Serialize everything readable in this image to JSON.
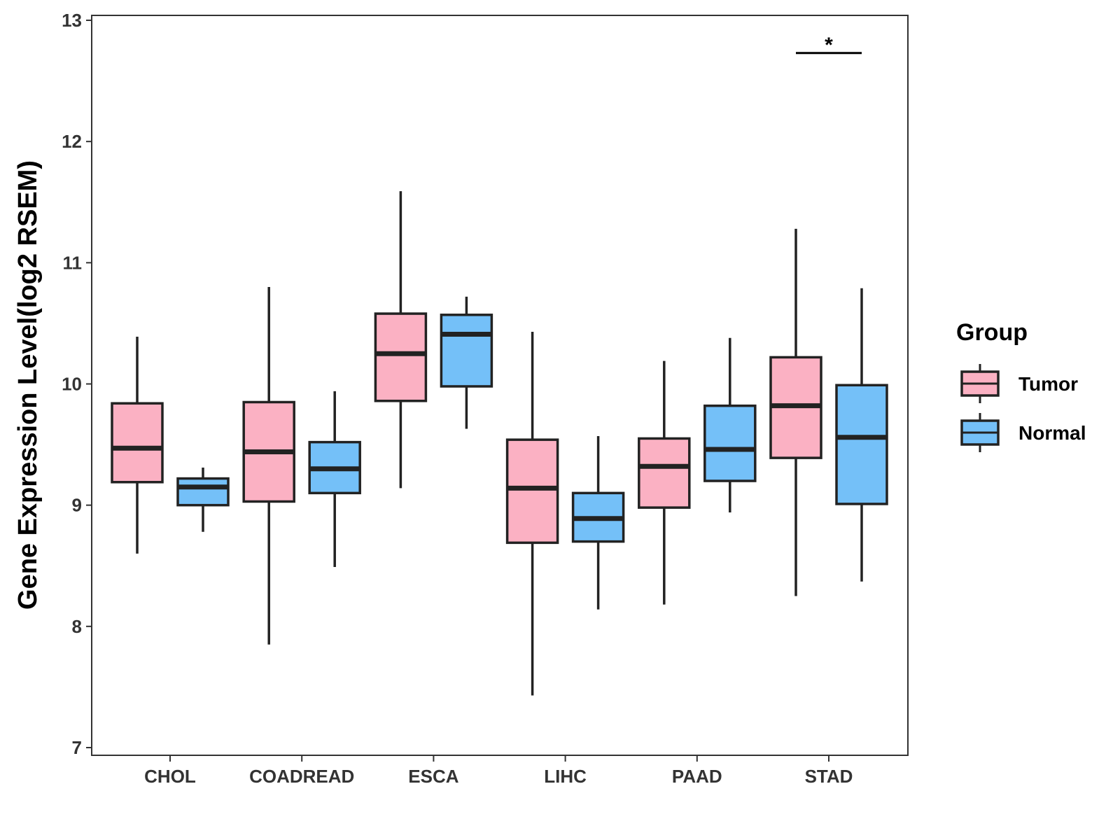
{
  "chart_data": {
    "type": "boxplot",
    "title": "",
    "xlabel": "",
    "ylabel": "Gene Expression Level(log2 RSEM)",
    "ylim": [
      7,
      13
    ],
    "yticks": [
      7,
      8,
      9,
      10,
      11,
      12,
      13
    ],
    "categories": [
      "CHOL",
      "COADREAD",
      "ESCA",
      "LIHC",
      "PAAD",
      "STAD"
    ],
    "legend": {
      "title": "Group",
      "position": "right",
      "entries": [
        {
          "name": "Tumor",
          "color": "#FBB1C3"
        },
        {
          "name": "Normal",
          "color": "#74C0F8"
        }
      ]
    },
    "series": [
      {
        "name": "Tumor",
        "color": "#FBB1C3",
        "boxes": [
          {
            "whisker_low": 8.6,
            "q1": 9.19,
            "median": 9.47,
            "q3": 9.84,
            "whisker_high": 10.39
          },
          {
            "whisker_low": 7.85,
            "q1": 9.03,
            "median": 9.44,
            "q3": 9.85,
            "whisker_high": 10.8
          },
          {
            "whisker_low": 9.14,
            "q1": 9.86,
            "median": 10.25,
            "q3": 10.58,
            "whisker_high": 11.59
          },
          {
            "whisker_low": 7.43,
            "q1": 8.69,
            "median": 9.14,
            "q3": 9.54,
            "whisker_high": 10.43
          },
          {
            "whisker_low": 8.18,
            "q1": 8.98,
            "median": 9.32,
            "q3": 9.55,
            "whisker_high": 10.19
          },
          {
            "whisker_low": 8.25,
            "q1": 9.39,
            "median": 9.82,
            "q3": 10.22,
            "whisker_high": 11.28
          }
        ]
      },
      {
        "name": "Normal",
        "color": "#74C0F8",
        "boxes": [
          {
            "whisker_low": 8.78,
            "q1": 9.0,
            "median": 9.15,
            "q3": 9.22,
            "whisker_high": 9.31
          },
          {
            "whisker_low": 8.49,
            "q1": 9.1,
            "median": 9.3,
            "q3": 9.52,
            "whisker_high": 9.94
          },
          {
            "whisker_low": 9.63,
            "q1": 9.98,
            "median": 10.41,
            "q3": 10.57,
            "whisker_high": 10.72
          },
          {
            "whisker_low": 8.14,
            "q1": 8.7,
            "median": 8.89,
            "q3": 9.1,
            "whisker_high": 9.57
          },
          {
            "whisker_low": 8.94,
            "q1": 9.2,
            "median": 9.46,
            "q3": 9.82,
            "whisker_high": 10.38
          },
          {
            "whisker_low": 8.37,
            "q1": 9.01,
            "median": 9.56,
            "q3": 9.99,
            "whisker_high": 10.79
          }
        ]
      }
    ],
    "annotations": [
      {
        "category": "STAD",
        "text": "*",
        "y": 12.73
      }
    ]
  }
}
